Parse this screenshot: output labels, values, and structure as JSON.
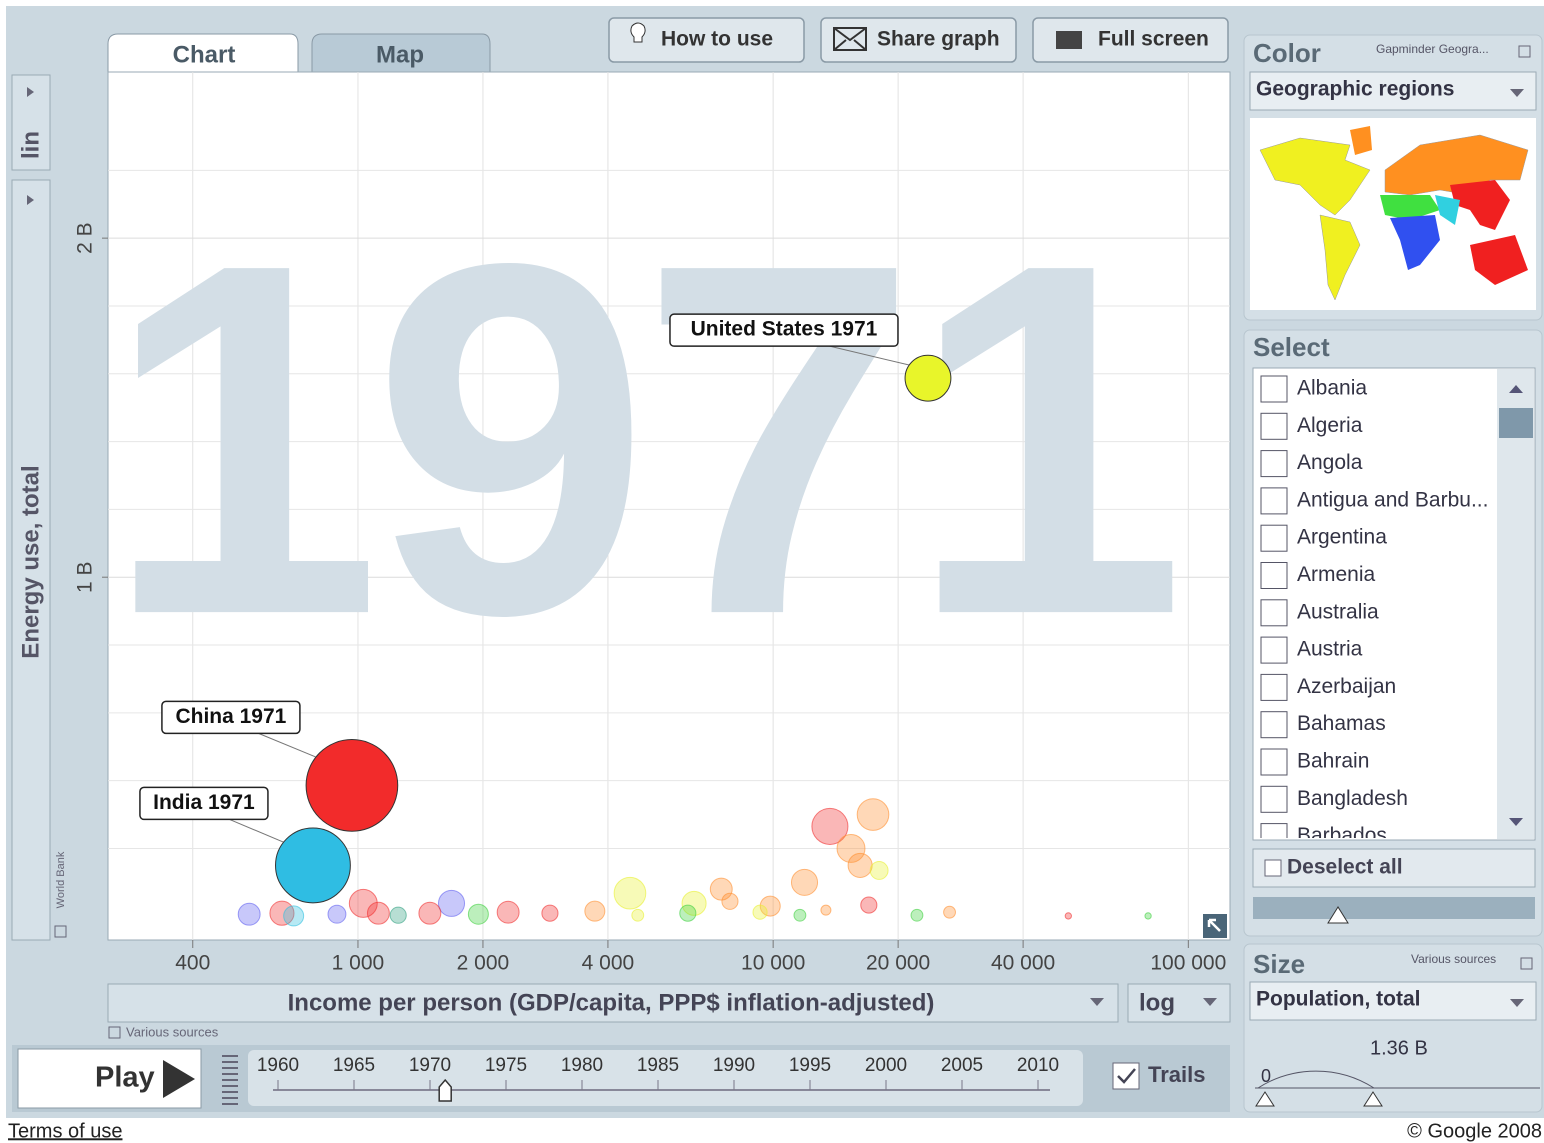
{
  "tabs": [
    "Chart",
    "Map"
  ],
  "buttons": [
    "How to use",
    "Share graph",
    "Full screen"
  ],
  "chart": {
    "type": "scatter",
    "watermark": "1971",
    "y_scale_menu": "lin",
    "ylabel": "Energy use, total",
    "y_source": "World Bank",
    "xlabel": "Income per person (GDP/capita, PPP$ inflation-adjusted)",
    "x_scale_menu": "log",
    "x_source": "Various sources",
    "xlog": true,
    "xlim": [
      250,
      126000
    ],
    "xticks": [
      400,
      {
        "value": 1000,
        "label": "1 000"
      },
      {
        "value": 2000,
        "label": "2 000"
      },
      {
        "value": 4000,
        "label": "4 000"
      },
      {
        "value": 10000,
        "label": "10 000"
      },
      {
        "value": 20000,
        "label": "20 000"
      },
      {
        "value": 40000,
        "label": "40 000"
      },
      {
        "value": 100000,
        "label": "100 000"
      }
    ],
    "ylim": [
      -70000000,
      2490000000
    ],
    "yticks": [
      {
        "value": 1000000000,
        "label": "1 B"
      },
      {
        "value": 2000000000,
        "label": "2 B"
      }
    ],
    "ygrid": [
      200000000,
      400000000,
      600000000,
      800000000,
      1200000000,
      1400000000,
      1600000000,
      1800000000,
      2200000000
    ],
    "grid": true,
    "points": [
      {
        "label": "United States 1971",
        "x": 23600,
        "y": 1587000000,
        "size": 210000000,
        "color": "#e8f52a"
      },
      {
        "label": "China 1971",
        "x": 967,
        "y": 386000000,
        "size": 840000000,
        "color": "#f22b2b"
      },
      {
        "label": "India 1971",
        "x": 779,
        "y": 150000000,
        "size": 560000000,
        "color": "#2fbde3"
      }
    ],
    "others": {
      "x": [
        13700,
        17400,
        15400,
        16200,
        18000,
        11900,
        7500,
        4520,
        6450,
        1680,
        1030,
        547,
        656,
        700,
        890,
        1120,
        1250,
        1490,
        1950,
        2300,
        2900,
        3720,
        4720,
        6230,
        7870,
        9840,
        9300,
        11600,
        13400,
        17000,
        22200,
        26600,
        51400,
        80000
      ],
      "y": [
        265000000,
        300000000,
        200000000,
        150000000,
        135000000,
        100000000,
        80000000,
        68000000,
        38000000,
        38000000,
        38000000,
        6000000,
        9000000,
        1000000,
        6000000,
        9000000,
        3000000,
        9000000,
        6000000,
        12000000,
        9000000,
        15000000,
        3000000,
        9000000,
        44000000,
        30000000,
        12000000,
        3000000,
        18000000,
        33000000,
        3000000,
        12000000,
        1000000,
        1000000
      ],
      "size": [
        130000000,
        100000000,
        78000000,
        58000000,
        32000000,
        68000000,
        48000000,
        100000000,
        58000000,
        68000000,
        78000000,
        48000000,
        58000000,
        40000000,
        32000000,
        48000000,
        26000000,
        48000000,
        40000000,
        48000000,
        26000000,
        40000000,
        14000000,
        26000000,
        26000000,
        40000000,
        20000000,
        14000000,
        10000000,
        26000000,
        14000000,
        14000000,
        4000000,
        4000000
      ],
      "colors": [
        "#f03030",
        "#ff9030",
        "#ff9030",
        "#ff9030",
        "#e8f030",
        "#ff9030",
        "#ff9030",
        "#e8f030",
        "#e8f030",
        "#6060f0",
        "#f03030",
        "#6060f0",
        "#f03030",
        "#30c0e0",
        "#6060f0",
        "#f03030",
        "#30a080",
        "#f03030",
        "#40d040",
        "#f03030",
        "#f03030",
        "#ff9030",
        "#e8f030",
        "#40d040",
        "#ff9030",
        "#ff9030",
        "#e8f030",
        "#40d040",
        "#ff9030",
        "#f03030",
        "#40d040",
        "#ff9030",
        "#f03030",
        "#40d040"
      ]
    }
  },
  "color_panel": {
    "title": "Color",
    "source": "Gapminder Geogra...",
    "indicator": "Geographic regions"
  },
  "select_panel": {
    "title": "Select",
    "countries": [
      "Albania",
      "Algeria",
      "Angola",
      "Antigua and Barbu...",
      "Argentina",
      "Armenia",
      "Australia",
      "Austria",
      "Azerbaijan",
      "Bahamas",
      "Bahrain",
      "Bangladesh",
      "Barbados"
    ],
    "deselect": "Deselect all"
  },
  "size_panel": {
    "title": "Size",
    "source": "Various sources",
    "indicator": "Population, total",
    "max": {
      "value": 1360000000,
      "label": "1.36 B"
    },
    "min": 0
  },
  "timeline": {
    "play": "Play",
    "years": [
      1960,
      1965,
      1970,
      1975,
      1980,
      1985,
      1990,
      1995,
      2000,
      2005,
      2010
    ],
    "current": 1971,
    "trails": "Trails"
  },
  "footer": {
    "terms": "Terms of use",
    "copyright": "© Google 2008"
  }
}
